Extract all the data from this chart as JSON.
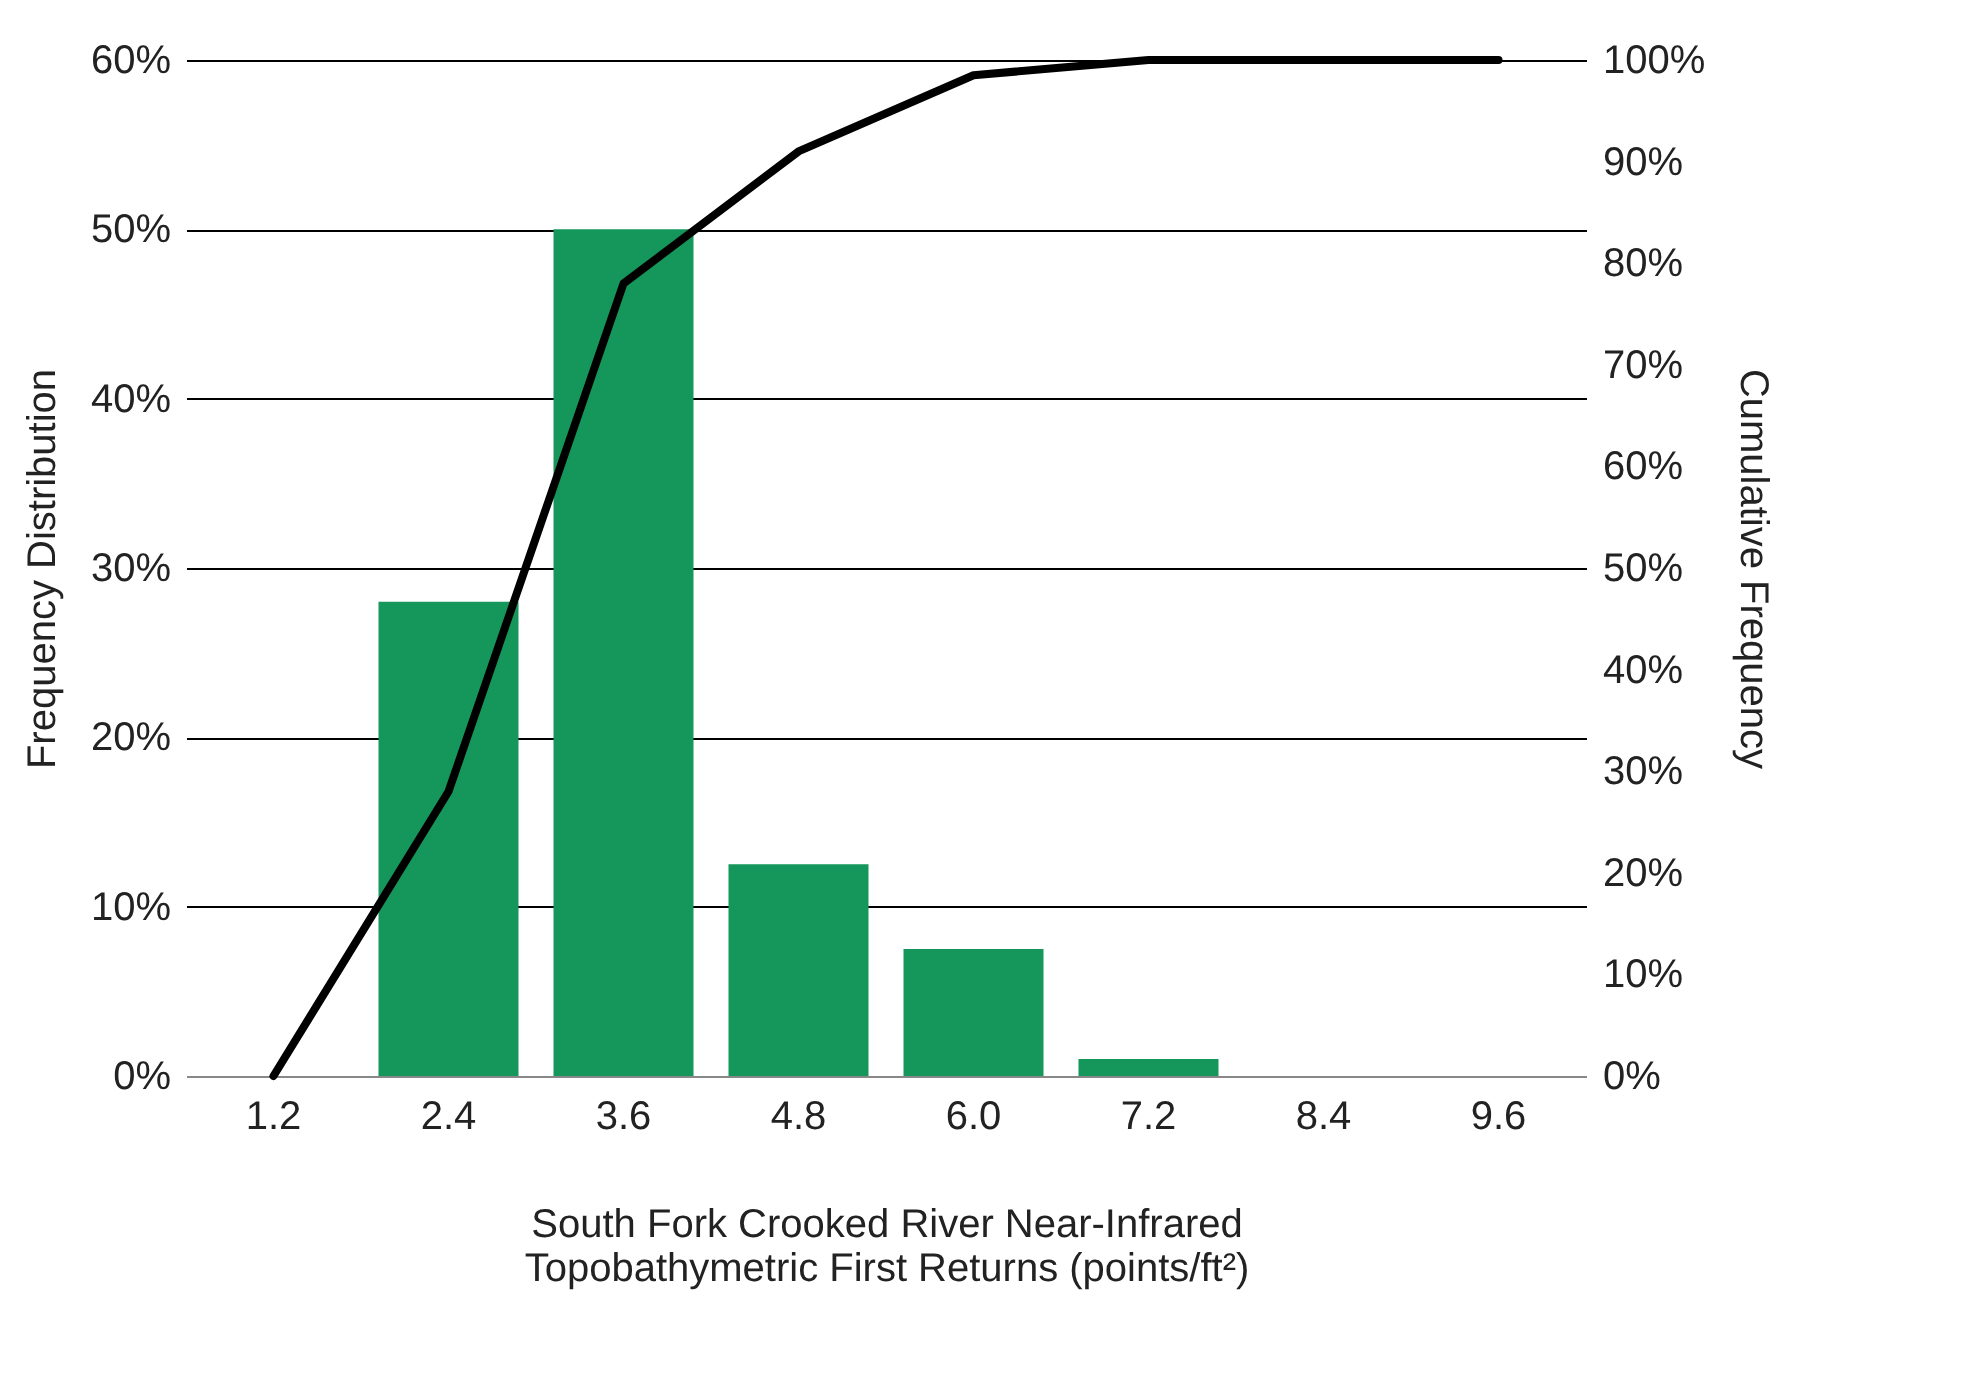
{
  "chart_data": {
    "type": "bar",
    "xlabel": "South Fork Crooked River Near-Infrared\nTopobathymetric First Returns (points/ft²)",
    "ylabel": "Frequency Distribution",
    "y2label": "Cumulative Frequency",
    "categories": [
      "1.2",
      "2.4",
      "3.6",
      "4.8",
      "6.0",
      "7.2",
      "8.4",
      "9.6"
    ],
    "series": [
      {
        "color": "#15965a",
        "values": [
          0,
          28,
          50,
          12.5,
          7.5,
          1,
          0,
          0
        ]
      },
      {
        "type": "line",
        "axis": "y2",
        "color": "#000000",
        "values": [
          0,
          28,
          78,
          91,
          98.5,
          100,
          100,
          100
        ]
      }
    ],
    "ylim": [
      0,
      60
    ],
    "yticks": [
      {
        "value": 0,
        "label": "0%"
      },
      {
        "value": 10,
        "label": "10%"
      },
      {
        "value": 20,
        "label": "20%"
      },
      {
        "value": 30,
        "label": "30%"
      },
      {
        "value": 40,
        "label": "40%"
      },
      {
        "value": 50,
        "label": "50%"
      },
      {
        "value": 60,
        "label": "60%"
      }
    ],
    "y2lim": [
      0,
      100
    ],
    "y2ticks": [
      {
        "value": 0,
        "label": "0%"
      },
      {
        "value": 10,
        "label": "10%"
      },
      {
        "value": 20,
        "label": "20%"
      },
      {
        "value": 30,
        "label": "30%"
      },
      {
        "value": 40,
        "label": "40%"
      },
      {
        "value": 50,
        "label": "50%"
      },
      {
        "value": 60,
        "label": "60%"
      },
      {
        "value": 70,
        "label": "70%"
      },
      {
        "value": 80,
        "label": "80%"
      },
      {
        "value": 90,
        "label": "90%"
      },
      {
        "value": 100,
        "label": "100%"
      }
    ],
    "grid": "y",
    "marker": "none",
    "line_style": "solid"
  }
}
